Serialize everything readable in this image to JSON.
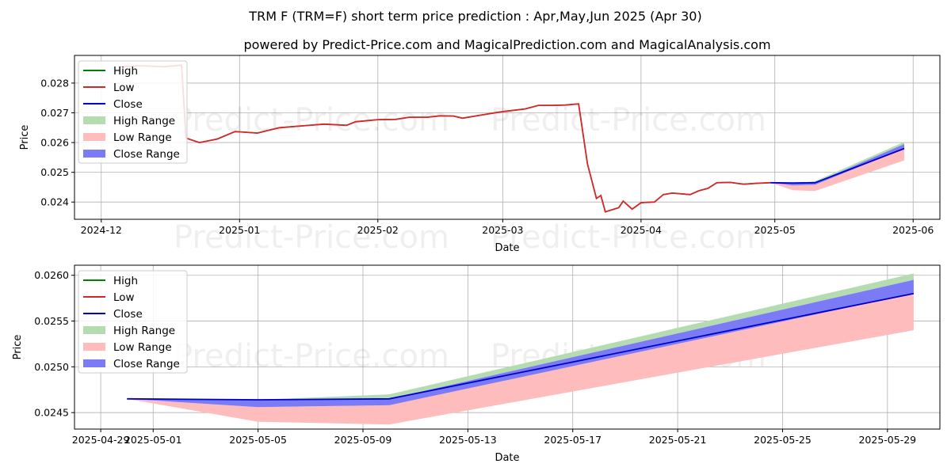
{
  "title": "TRM F (TRM=F) short term price prediction : Apr,May,Jun 2025 (Apr 30)",
  "subtitle": "powered by Predict-Price.com and MagicalPrediction.com and MagicalAnalysis.com",
  "watermark": "Predict-Price.com",
  "colors": {
    "high": "#008000",
    "low": "#d62728",
    "close": "#0000cc",
    "high_range": "#b5dcb0",
    "low_range": "#ffbcbc",
    "close_range": "#7b7bf5"
  },
  "legend": {
    "position": "upper-left",
    "items": [
      {
        "label": "High",
        "type": "line",
        "color": "#008000"
      },
      {
        "label": "Low",
        "type": "line",
        "color": "#d62728"
      },
      {
        "label": "Close",
        "type": "line",
        "color": "#0000cc"
      },
      {
        "label": "High Range",
        "type": "patch",
        "color": "#b5dcb0"
      },
      {
        "label": "Low Range",
        "type": "patch",
        "color": "#ffbcbc"
      },
      {
        "label": "Close Range",
        "type": "patch",
        "color": "#7b7bf5"
      }
    ]
  },
  "chart_data": [
    {
      "type": "line",
      "xlabel": "Date",
      "ylabel": "Price",
      "grid": true,
      "xlim": [
        "2024-11-25",
        "2025-06-07"
      ],
      "ylim": [
        0.02342,
        0.02893
      ],
      "x_ticks": [
        "2024-12-01",
        "2025-01-01",
        "2025-02-01",
        "2025-03-01",
        "2025-04-01",
        "2025-05-01",
        "2025-06-01"
      ],
      "x_tick_labels": [
        "2024-12",
        "2025-01",
        "2025-02",
        "2025-03",
        "2025-04",
        "2025-05",
        "2025-06"
      ],
      "y_ticks": [
        0.024,
        0.025,
        0.026,
        0.027,
        0.028
      ],
      "y_tick_labels": [
        "0.024",
        "0.025",
        "0.026",
        "0.027",
        "0.028"
      ],
      "history": [
        [
          "2024-12-05",
          0.02855
        ],
        [
          "2024-12-10",
          0.02858
        ],
        [
          "2024-12-15",
          0.02855
        ],
        [
          "2024-12-19",
          0.0286
        ],
        [
          "2024-12-20",
          0.02615
        ],
        [
          "2024-12-23",
          0.026
        ],
        [
          "2024-12-27",
          0.02612
        ],
        [
          "2024-12-31",
          0.02637
        ],
        [
          "2025-01-02",
          0.02635
        ],
        [
          "2025-01-05",
          0.02632
        ],
        [
          "2025-01-08",
          0.02643
        ],
        [
          "2025-01-10",
          0.0265
        ],
        [
          "2025-01-15",
          0.02656
        ],
        [
          "2025-01-20",
          0.02662
        ],
        [
          "2025-01-25",
          0.02658
        ],
        [
          "2025-01-27",
          0.0267
        ],
        [
          "2025-02-01",
          0.02677
        ],
        [
          "2025-02-05",
          0.02678
        ],
        [
          "2025-02-08",
          0.02685
        ],
        [
          "2025-02-12",
          0.02685
        ],
        [
          "2025-02-15",
          0.0269
        ],
        [
          "2025-02-18",
          0.02689
        ],
        [
          "2025-02-20",
          0.02682
        ],
        [
          "2025-02-24",
          0.02692
        ],
        [
          "2025-02-28",
          0.02702
        ],
        [
          "2025-03-02",
          0.02706
        ],
        [
          "2025-03-06",
          0.02713
        ],
        [
          "2025-03-09",
          0.02725
        ],
        [
          "2025-03-12",
          0.02725
        ],
        [
          "2025-03-15",
          0.02726
        ],
        [
          "2025-03-18",
          0.0273
        ],
        [
          "2025-03-20",
          0.02528
        ],
        [
          "2025-03-22",
          0.02412
        ],
        [
          "2025-03-23",
          0.02422
        ],
        [
          "2025-03-24",
          0.02367
        ],
        [
          "2025-03-27",
          0.02381
        ],
        [
          "2025-03-28",
          0.02403
        ],
        [
          "2025-03-30",
          0.02376
        ],
        [
          "2025-04-01",
          0.02398
        ],
        [
          "2025-04-04",
          0.024
        ],
        [
          "2025-04-06",
          0.02425
        ],
        [
          "2025-04-08",
          0.0243
        ],
        [
          "2025-04-12",
          0.02425
        ],
        [
          "2025-04-14",
          0.02438
        ],
        [
          "2025-04-16",
          0.02446
        ],
        [
          "2025-04-18",
          0.02465
        ],
        [
          "2025-04-21",
          0.02466
        ],
        [
          "2025-04-24",
          0.0246
        ],
        [
          "2025-04-27",
          0.02463
        ],
        [
          "2025-04-30",
          0.02465
        ]
      ],
      "forecast": {
        "dates": [
          "2025-04-30",
          "2025-05-05",
          "2025-05-10",
          "2025-05-30"
        ],
        "close": [
          0.02465,
          0.02464,
          0.02465,
          0.0258
        ],
        "high_range_upper": [
          0.02465,
          0.02464,
          0.0247,
          0.02602
        ],
        "close_range_upper": [
          0.02465,
          0.02464,
          0.02465,
          0.02595
        ],
        "close_range_lower": [
          0.02465,
          0.02456,
          0.02458,
          0.0258
        ],
        "low_range_lower": [
          0.02465,
          0.0244,
          0.02437,
          0.0254
        ]
      }
    },
    {
      "type": "line",
      "xlabel": "Date",
      "ylabel": "Price",
      "grid": true,
      "xlim": [
        "2025-04-28",
        "2025-05-31"
      ],
      "ylim": [
        0.02432,
        0.02611
      ],
      "x_ticks": [
        "2025-04-29",
        "2025-05-01",
        "2025-05-05",
        "2025-05-09",
        "2025-05-13",
        "2025-05-17",
        "2025-05-21",
        "2025-05-25",
        "2025-05-29"
      ],
      "x_tick_labels": [
        "2025-04-29",
        "2025-05-01",
        "2025-05-05",
        "2025-05-09",
        "2025-05-13",
        "2025-05-17",
        "2025-05-21",
        "2025-05-25",
        "2025-05-29"
      ],
      "y_ticks": [
        0.0245,
        0.025,
        0.0255,
        0.026
      ],
      "y_tick_labels": [
        "0.0245",
        "0.0250",
        "0.0255",
        "0.0260"
      ],
      "forecast": {
        "dates": [
          "2025-04-30",
          "2025-05-05",
          "2025-05-10",
          "2025-05-30"
        ],
        "close": [
          0.02465,
          0.02464,
          0.02465,
          0.0258
        ],
        "high_range_upper": [
          0.02465,
          0.02464,
          0.0247,
          0.02602
        ],
        "close_range_upper": [
          0.02465,
          0.02464,
          0.02465,
          0.02595
        ],
        "close_range_lower": [
          0.02465,
          0.02456,
          0.02458,
          0.0258
        ],
        "low_range_lower": [
          0.02465,
          0.0244,
          0.02437,
          0.0254
        ]
      }
    }
  ]
}
